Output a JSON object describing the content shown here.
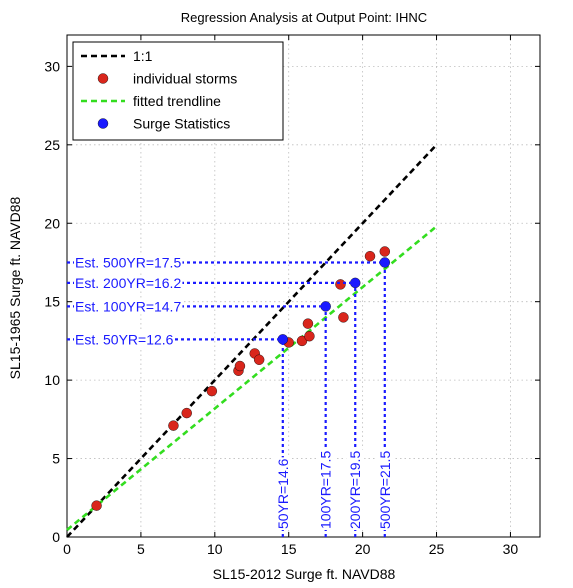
{
  "chart_data": {
    "type": "scatter",
    "title": "Regression Analysis at Output Point: IHNC",
    "xlabel": "SL15-2012 Surge ft. NAVD88",
    "ylabel": "SL15-1965 Surge ft. NAVD88",
    "xlim": [
      0,
      32
    ],
    "ylim": [
      0,
      32
    ],
    "xticks": [
      0,
      5,
      10,
      15,
      20,
      25,
      30
    ],
    "yticks": [
      0,
      5,
      10,
      15,
      20,
      25,
      30
    ],
    "grid": true,
    "legend_position": "top-left",
    "series": [
      {
        "name": "1:1",
        "kind": "line",
        "color": "#000000",
        "dash": true,
        "x": [
          0,
          25
        ],
        "y": [
          0,
          25
        ]
      },
      {
        "name": "individual storms",
        "kind": "marker",
        "color": "#d9261c",
        "x": [
          2.0,
          7.2,
          8.1,
          9.8,
          11.6,
          11.7,
          12.7,
          13.0,
          15.0,
          15.9,
          16.3,
          16.4,
          18.5,
          18.7,
          20.5,
          21.5
        ],
        "y": [
          2.0,
          7.1,
          7.9,
          9.3,
          10.6,
          10.9,
          11.7,
          11.3,
          12.4,
          12.5,
          13.6,
          12.8,
          16.1,
          14.0,
          17.9,
          18.2
        ]
      },
      {
        "name": "fitted trendline",
        "kind": "line",
        "color": "#33dd1f",
        "dash": true,
        "x": [
          0,
          25
        ],
        "y": [
          0.45,
          19.8
        ]
      },
      {
        "name": "Surge Statistics",
        "kind": "marker",
        "color": "#1a1aff",
        "x": [
          14.6,
          17.5,
          19.5,
          21.5
        ],
        "y": [
          12.6,
          14.7,
          16.2,
          17.5
        ]
      }
    ],
    "annotations": {
      "horizontal": [
        {
          "label": "Est. 500YR=17.5",
          "y": 17.5,
          "x_end": 21.5
        },
        {
          "label": "Est. 200YR=16.2",
          "y": 16.2,
          "x_end": 19.5
        },
        {
          "label": "Est. 100YR=14.7",
          "y": 14.7,
          "x_end": 17.5
        },
        {
          "label": "Est. 50YR=12.6",
          "y": 12.6,
          "x_end": 14.6
        }
      ],
      "vertical": [
        {
          "label": "50YR=14.6",
          "x": 14.6,
          "y_end": 12.6
        },
        {
          "label": "100YR=17.5",
          "x": 17.5,
          "y_end": 14.7
        },
        {
          "label": "200YR=19.5",
          "x": 19.5,
          "y_end": 16.2
        },
        {
          "label": "500YR=21.5",
          "x": 21.5,
          "y_end": 17.5
        }
      ],
      "color": "#1a1aff"
    }
  }
}
